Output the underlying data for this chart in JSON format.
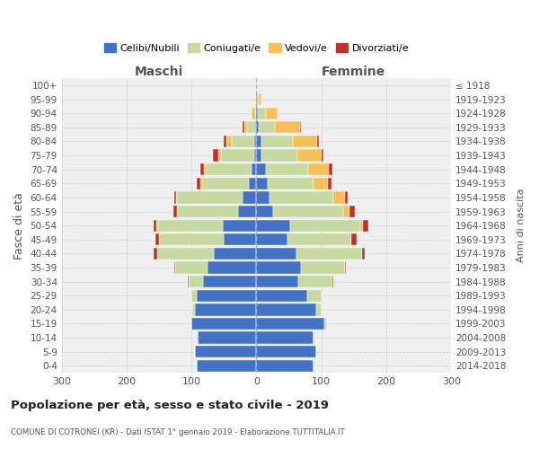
{
  "age_groups": [
    "0-4",
    "5-9",
    "10-14",
    "15-19",
    "20-24",
    "25-29",
    "30-34",
    "35-39",
    "40-44",
    "45-49",
    "50-54",
    "55-59",
    "60-64",
    "65-69",
    "70-74",
    "75-79",
    "80-84",
    "85-89",
    "90-94",
    "95-99",
    "100+"
  ],
  "birth_years": [
    "2014-2018",
    "2009-2013",
    "2004-2008",
    "1999-2003",
    "1994-1998",
    "1989-1993",
    "1984-1988",
    "1979-1983",
    "1974-1978",
    "1969-1973",
    "1964-1968",
    "1959-1963",
    "1954-1958",
    "1949-1953",
    "1944-1948",
    "1939-1943",
    "1934-1938",
    "1929-1933",
    "1924-1928",
    "1919-1923",
    "≤ 1918"
  ],
  "maschi_celibi": [
    92,
    95,
    90,
    100,
    95,
    92,
    82,
    75,
    65,
    50,
    52,
    28,
    22,
    12,
    8,
    4,
    3,
    2,
    0,
    0,
    0
  ],
  "maschi_coniugati": [
    0,
    0,
    0,
    0,
    4,
    8,
    22,
    50,
    88,
    100,
    100,
    95,
    100,
    72,
    70,
    50,
    35,
    12,
    2,
    0,
    0
  ],
  "maschi_vedovi": [
    0,
    0,
    0,
    0,
    0,
    0,
    0,
    0,
    0,
    0,
    2,
    0,
    2,
    3,
    3,
    5,
    8,
    5,
    5,
    0,
    0
  ],
  "maschi_divorziati": [
    0,
    0,
    0,
    0,
    0,
    0,
    2,
    2,
    5,
    5,
    5,
    5,
    3,
    5,
    5,
    8,
    5,
    2,
    0,
    0,
    0
  ],
  "femmine_celibi": [
    88,
    92,
    88,
    105,
    92,
    78,
    65,
    68,
    62,
    48,
    52,
    25,
    20,
    18,
    15,
    8,
    8,
    4,
    2,
    1,
    0
  ],
  "femmine_coniugati": [
    0,
    0,
    0,
    4,
    8,
    22,
    52,
    68,
    100,
    98,
    108,
    108,
    98,
    70,
    65,
    55,
    48,
    25,
    12,
    2,
    1
  ],
  "femmine_vedovi": [
    0,
    0,
    0,
    0,
    0,
    0,
    0,
    0,
    0,
    0,
    4,
    10,
    18,
    22,
    32,
    38,
    38,
    38,
    18,
    5,
    0
  ],
  "femmine_divorziati": [
    0,
    0,
    0,
    0,
    0,
    0,
    2,
    2,
    5,
    8,
    8,
    8,
    5,
    5,
    5,
    2,
    2,
    2,
    0,
    0,
    0
  ],
  "colors": {
    "celibi": "#4472c4",
    "coniugati": "#c5d9a0",
    "vedovi": "#f5c05a",
    "divorziati": "#c0302a"
  },
  "xlim": 300,
  "title": "Popolazione per età, sesso e stato civile - 2019",
  "subtitle": "COMUNE DI COTRONEI (KR) - Dati ISTAT 1° gennaio 2019 - Elaborazione TUTTITALIA.IT",
  "ylabel": "Fasce di età",
  "ylabel_right": "Anni di nascita",
  "label_maschi": "Maschi",
  "label_femmine": "Femmine",
  "bg_color": "#efefef",
  "bar_height": 0.85,
  "legend_labels": [
    "Celibi/Nubili",
    "Coniugati/e",
    "Vedovi/e",
    "Divorziati/e"
  ]
}
